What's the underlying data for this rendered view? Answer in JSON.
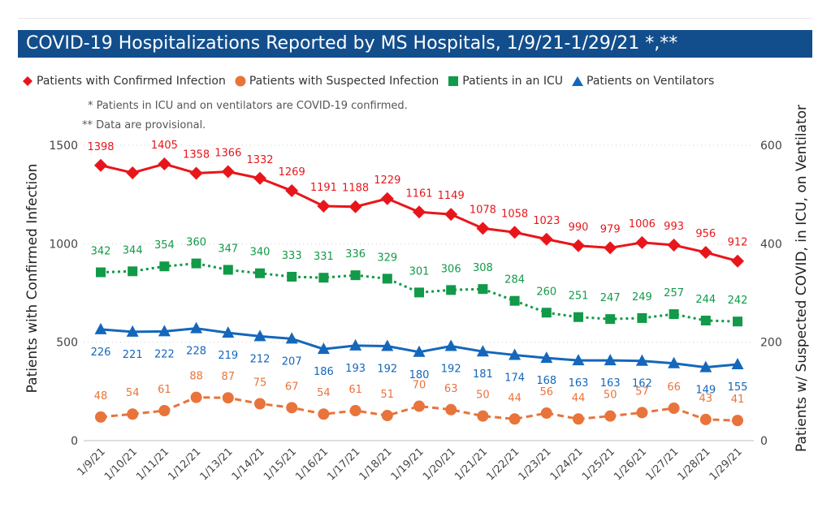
{
  "banner": {
    "title": "COVID-19 Hospitalizations Reported by MS Hospitals, 1/9/21-1/29/21 *,**"
  },
  "legend": [
    {
      "label": "Patients with Confirmed Infection",
      "marker": "diamond",
      "color": "#e8161b"
    },
    {
      "label": "Patients with Suspected Infection",
      "marker": "circle",
      "color": "#e8743b"
    },
    {
      "label": "Patients in an ICU",
      "marker": "square",
      "color": "#119a48"
    },
    {
      "label": "Patients on Ventilators",
      "marker": "triangle",
      "color": "#1467bb"
    }
  ],
  "notes": [
    "* Patients in ICU and on ventilators are COVID-19 confirmed.",
    "** Data are provisional."
  ],
  "chart_data": {
    "type": "line",
    "categories": [
      "1/9/21",
      "1/10/21",
      "1/11/21",
      "1/12/21",
      "1/13/21",
      "1/14/21",
      "1/15/21",
      "1/16/21",
      "1/17/21",
      "1/18/21",
      "1/19/21",
      "1/20/21",
      "1/21/21",
      "1/22/21",
      "1/23/21",
      "1/24/21",
      "1/25/21",
      "1/26/21",
      "1/27/21",
      "1/28/21",
      "1/29/21"
    ],
    "ylabel": "Patients with Confirmed Infection",
    "y2label": "Patients w/ Suspected COVID, in ICU, on Ventilator",
    "ylim": [
      0,
      1500
    ],
    "y2lim": [
      0,
      600
    ],
    "yticks": [
      "0",
      "500",
      "1000",
      "1500"
    ],
    "y2ticks": [
      "0",
      "200",
      "400",
      "600"
    ],
    "grid": "dotted horizontal",
    "legend_position": "top",
    "series": [
      {
        "name": "Patients with Confirmed Infection",
        "axis": "left",
        "marker": "diamond",
        "style": "solid",
        "color": "#e8161b",
        "label_color": "#e8161b",
        "values": [
          1398,
          1360,
          1405,
          1358,
          1366,
          1332,
          1269,
          1191,
          1188,
          1229,
          1161,
          1149,
          1078,
          1058,
          1023,
          990,
          979,
          1006,
          993,
          956,
          912
        ],
        "labels": [
          "1398",
          null,
          "1405",
          "1358",
          "1366",
          "1332",
          "1269",
          "1191",
          "1188",
          "1229",
          "1161",
          "1149",
          "1078",
          "1058",
          "1023",
          "990",
          "979",
          "1006",
          "993",
          "956",
          "912"
        ]
      },
      {
        "name": "Patients in an ICU",
        "axis": "right",
        "marker": "square",
        "style": "dotted",
        "color": "#119a48",
        "label_color": "#119a48",
        "values": [
          342,
          344,
          354,
          360,
          347,
          340,
          333,
          331,
          336,
          329,
          301,
          306,
          308,
          284,
          260,
          251,
          247,
          249,
          257,
          244,
          242
        ],
        "labels": [
          "342",
          "344",
          "354",
          "360",
          "347",
          "340",
          "333",
          "331",
          "336",
          "329",
          "301",
          "306",
          "308",
          "284",
          "260",
          "251",
          "247",
          "249",
          "257",
          "244",
          "242"
        ]
      },
      {
        "name": "Patients on Ventilators",
        "axis": "right",
        "marker": "triangle",
        "style": "solid",
        "color": "#1467bb",
        "label_color": "#1467bb",
        "values": [
          226,
          221,
          222,
          228,
          219,
          212,
          207,
          186,
          193,
          192,
          180,
          192,
          181,
          174,
          168,
          163,
          163,
          162,
          157,
          149,
          155
        ],
        "labels": [
          "226",
          "221",
          "222",
          "228",
          "219",
          "212",
          "207",
          "186",
          "193",
          "192",
          "180",
          "192",
          "181",
          "174",
          "168",
          "163",
          "163",
          "162",
          null,
          "149",
          "155"
        ]
      },
      {
        "name": "Patients with Suspected Infection",
        "axis": "right",
        "marker": "circle",
        "style": "dashed",
        "color": "#e8743b",
        "label_color": "#e8743b",
        "values": [
          48,
          54,
          61,
          88,
          87,
          75,
          67,
          54,
          61,
          51,
          70,
          63,
          50,
          44,
          56,
          44,
          50,
          57,
          66,
          43,
          41
        ],
        "labels": [
          "48",
          "54",
          "61",
          "88",
          "87",
          "75",
          "67",
          "54",
          "61",
          "51",
          "70",
          "63",
          "50",
          "44",
          "56",
          "44",
          "50",
          "57",
          "66",
          "43",
          "41"
        ]
      }
    ]
  }
}
